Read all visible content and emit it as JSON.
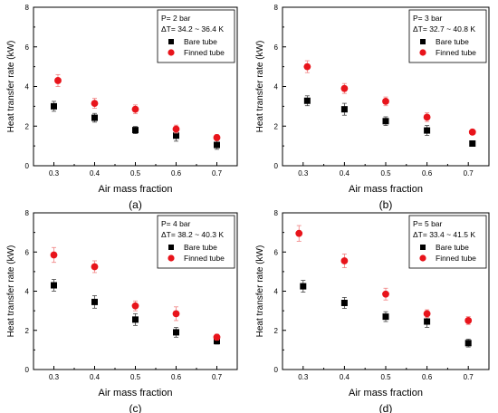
{
  "chart_data": [
    {
      "type": "scatter",
      "panel_label": "(a)",
      "xlabel": "Air mass fraction",
      "ylabel": "Heat transfer rate (kW)",
      "xlim": [
        0.25,
        0.75
      ],
      "ylim": [
        0,
        8
      ],
      "xticks": [
        "0.3",
        "0.4",
        "0.5",
        "0.6",
        "0.7"
      ],
      "yticks": [
        "0",
        "2",
        "4",
        "6",
        "8"
      ],
      "grid": false,
      "legend_placement": "top-right",
      "annotation_lines": [
        "P= 2 bar",
        "ΔT= 34.2 ~ 36.4 K"
      ],
      "series": [
        {
          "name": "Bare tube",
          "marker": "square",
          "color": "#000000",
          "x": [
            0.3,
            0.4,
            0.5,
            0.6,
            0.7
          ],
          "y": [
            3.0,
            2.42,
            1.8,
            1.52,
            1.05
          ],
          "err": [
            0.25,
            0.22,
            0.18,
            0.28,
            0.22
          ]
        },
        {
          "name": "Finned tube",
          "marker": "circle",
          "color": "#e8141b",
          "x": [
            0.31,
            0.4,
            0.5,
            0.6,
            0.7
          ],
          "y": [
            4.3,
            3.15,
            2.85,
            1.85,
            1.42
          ],
          "err": [
            0.3,
            0.25,
            0.22,
            0.2,
            0.15
          ]
        }
      ]
    },
    {
      "type": "scatter",
      "panel_label": "(b)",
      "xlabel": "Air mass fraction",
      "ylabel": "Heat transfer rate (kW)",
      "xlim": [
        0.25,
        0.75
      ],
      "ylim": [
        0,
        8
      ],
      "xticks": [
        "0.3",
        "0.4",
        "0.5",
        "0.6",
        "0.7"
      ],
      "yticks": [
        "0",
        "2",
        "4",
        "6",
        "8"
      ],
      "grid": false,
      "legend_placement": "top-right",
      "annotation_lines": [
        "P= 3 bar",
        "ΔT= 32.7 ~ 40.8 K"
      ],
      "series": [
        {
          "name": "Bare tube",
          "marker": "square",
          "color": "#000000",
          "x": [
            0.31,
            0.4,
            0.5,
            0.6,
            0.71
          ],
          "y": [
            3.28,
            2.85,
            2.25,
            1.78,
            1.12
          ],
          "err": [
            0.25,
            0.3,
            0.22,
            0.25,
            0.12
          ]
        },
        {
          "name": "Finned tube",
          "marker": "circle",
          "color": "#e8141b",
          "x": [
            0.31,
            0.4,
            0.5,
            0.6,
            0.71
          ],
          "y": [
            5.0,
            3.9,
            3.25,
            2.45,
            1.7
          ],
          "err": [
            0.3,
            0.25,
            0.22,
            0.22,
            0.12
          ]
        }
      ]
    },
    {
      "type": "scatter",
      "panel_label": "(c)",
      "xlabel": "Air mass fraction",
      "ylabel": "Heat transfer rate (kW)",
      "xlim": [
        0.25,
        0.75
      ],
      "ylim": [
        0,
        8
      ],
      "xticks": [
        "0.3",
        "0.4",
        "0.5",
        "0.6",
        "0.7"
      ],
      "yticks": [
        "0",
        "2",
        "4",
        "6",
        "8"
      ],
      "grid": false,
      "legend_placement": "top-right",
      "annotation_lines": [
        "P= 4 bar",
        "ΔT= 38.2 ~ 40.3 K"
      ],
      "series": [
        {
          "name": "Bare tube",
          "marker": "square",
          "color": "#000000",
          "x": [
            0.3,
            0.4,
            0.5,
            0.6,
            0.7
          ],
          "y": [
            4.3,
            3.45,
            2.55,
            1.9,
            1.45
          ],
          "err": [
            0.3,
            0.32,
            0.3,
            0.25,
            0.15
          ]
        },
        {
          "name": "Finned tube",
          "marker": "circle",
          "color": "#e8141b",
          "x": [
            0.3,
            0.4,
            0.5,
            0.6,
            0.7
          ],
          "y": [
            5.85,
            5.25,
            3.25,
            2.85,
            1.65
          ],
          "err": [
            0.38,
            0.3,
            0.25,
            0.35,
            0.15
          ]
        }
      ]
    },
    {
      "type": "scatter",
      "panel_label": "(d)",
      "xlabel": "Air mass fraction",
      "ylabel": "Heat transfer rate (kW)",
      "xlim": [
        0.25,
        0.75
      ],
      "ylim": [
        0,
        8
      ],
      "xticks": [
        "0.3",
        "0.4",
        "0.5",
        "0.6",
        "0.7"
      ],
      "yticks": [
        "0",
        "2",
        "4",
        "6",
        "8"
      ],
      "grid": false,
      "legend_placement": "top-right",
      "annotation_lines": [
        "P= 5 bar",
        "ΔT= 33.4 ~ 41.5 K"
      ],
      "series": [
        {
          "name": "Bare tube",
          "marker": "square",
          "color": "#000000",
          "x": [
            0.3,
            0.4,
            0.5,
            0.6,
            0.7
          ],
          "y": [
            4.25,
            3.4,
            2.7,
            2.45,
            1.35
          ],
          "err": [
            0.3,
            0.28,
            0.25,
            0.3,
            0.2
          ]
        },
        {
          "name": "Finned tube",
          "marker": "circle",
          "color": "#e8141b",
          "x": [
            0.29,
            0.4,
            0.5,
            0.6,
            0.7
          ],
          "y": [
            6.95,
            5.55,
            3.85,
            2.85,
            2.5
          ],
          "err": [
            0.4,
            0.35,
            0.3,
            0.2,
            0.2
          ]
        }
      ]
    }
  ]
}
